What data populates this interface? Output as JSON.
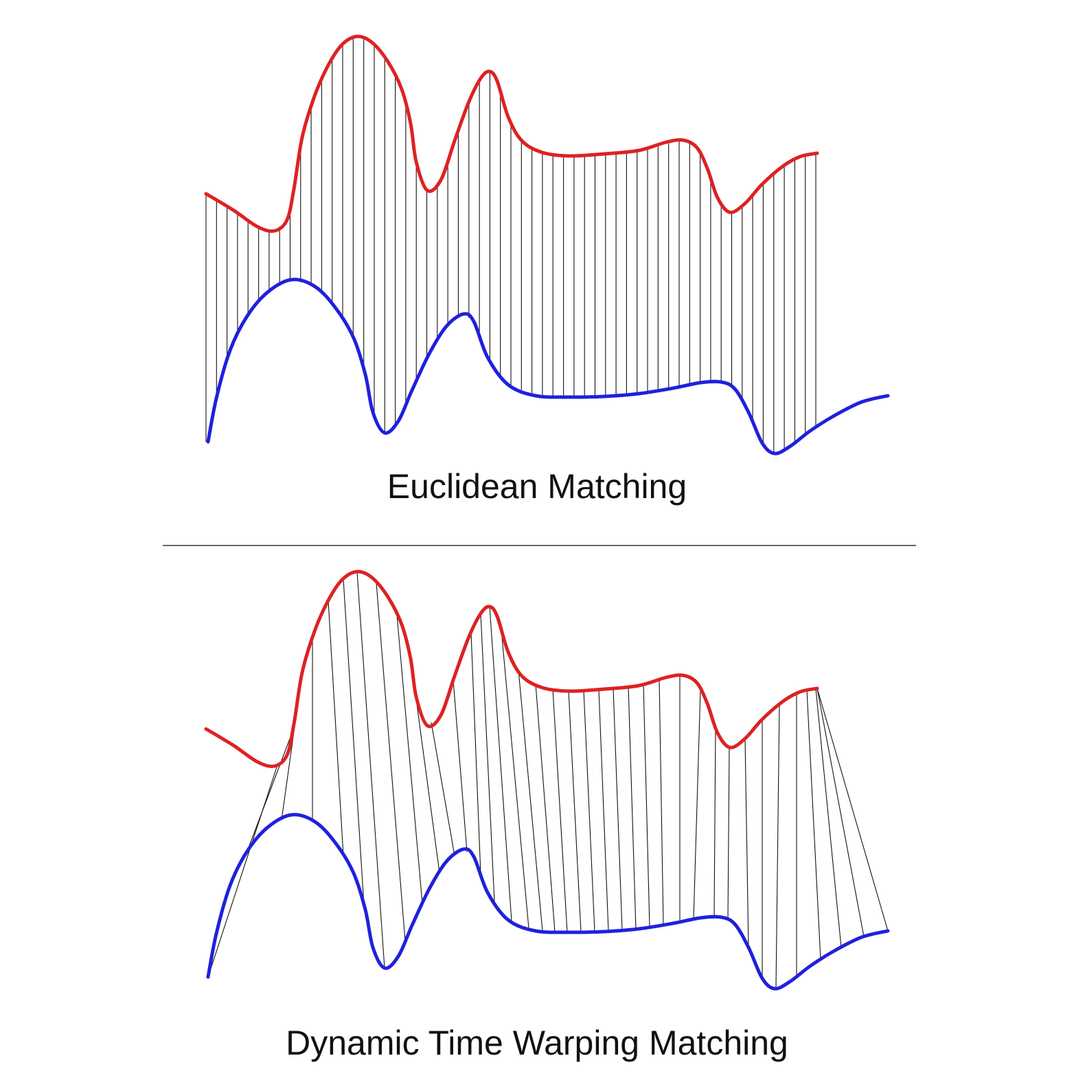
{
  "captions": {
    "euclidean": "Euclidean Matching",
    "dtw": "Dynamic Time Warping Matching"
  },
  "colors": {
    "series_a": "#dd2222",
    "series_b": "#2020dd",
    "connector": "#111111",
    "divider": "#333333",
    "background": "#ffffff"
  }
}
